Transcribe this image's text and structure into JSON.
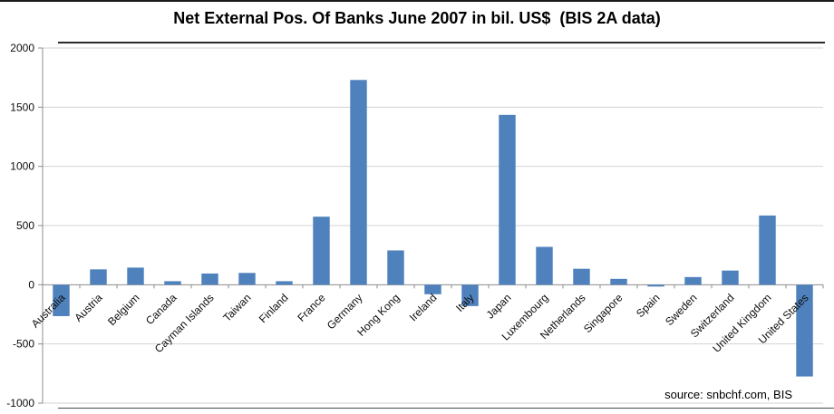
{
  "title": "Net External Pos. Of Banks June 2007 in bil. US$  (BIS 2A data)",
  "source": "source: snbchf.com, BIS",
  "chart_data": {
    "type": "bar",
    "title": "Net External Pos. Of Banks June 2007 in bil. US$  (BIS 2A data)",
    "categories": [
      "Australia",
      "Austria",
      "Belgium",
      "Canada",
      "Cayman Islands",
      "Taiwan",
      "Finland",
      "France",
      "Germany",
      "Hong Kong",
      "Ireland",
      "Italy",
      "Japan",
      "Luxembourg",
      "Netherlands",
      "Singapore",
      "Spain",
      "Sweden",
      "Switzerland",
      "United Kingdom",
      "United States"
    ],
    "values": [
      -265,
      130,
      145,
      30,
      95,
      100,
      30,
      575,
      1730,
      290,
      -80,
      -180,
      1435,
      320,
      135,
      50,
      -15,
      65,
      120,
      585,
      -775
    ],
    "xlabel": "",
    "ylabel": "",
    "ylim": [
      -1000,
      2000
    ],
    "yticks": [
      -1000,
      -500,
      0,
      500,
      1000,
      1500,
      2000
    ],
    "grid": true,
    "legend": "none",
    "annotations": [
      "source: snbchf.com, BIS"
    ],
    "bar_color": "#4F81BD",
    "gridline_color": "#D3D3D3",
    "axis_color": "#8C8C8C",
    "label_color": "#0d0d0d"
  }
}
